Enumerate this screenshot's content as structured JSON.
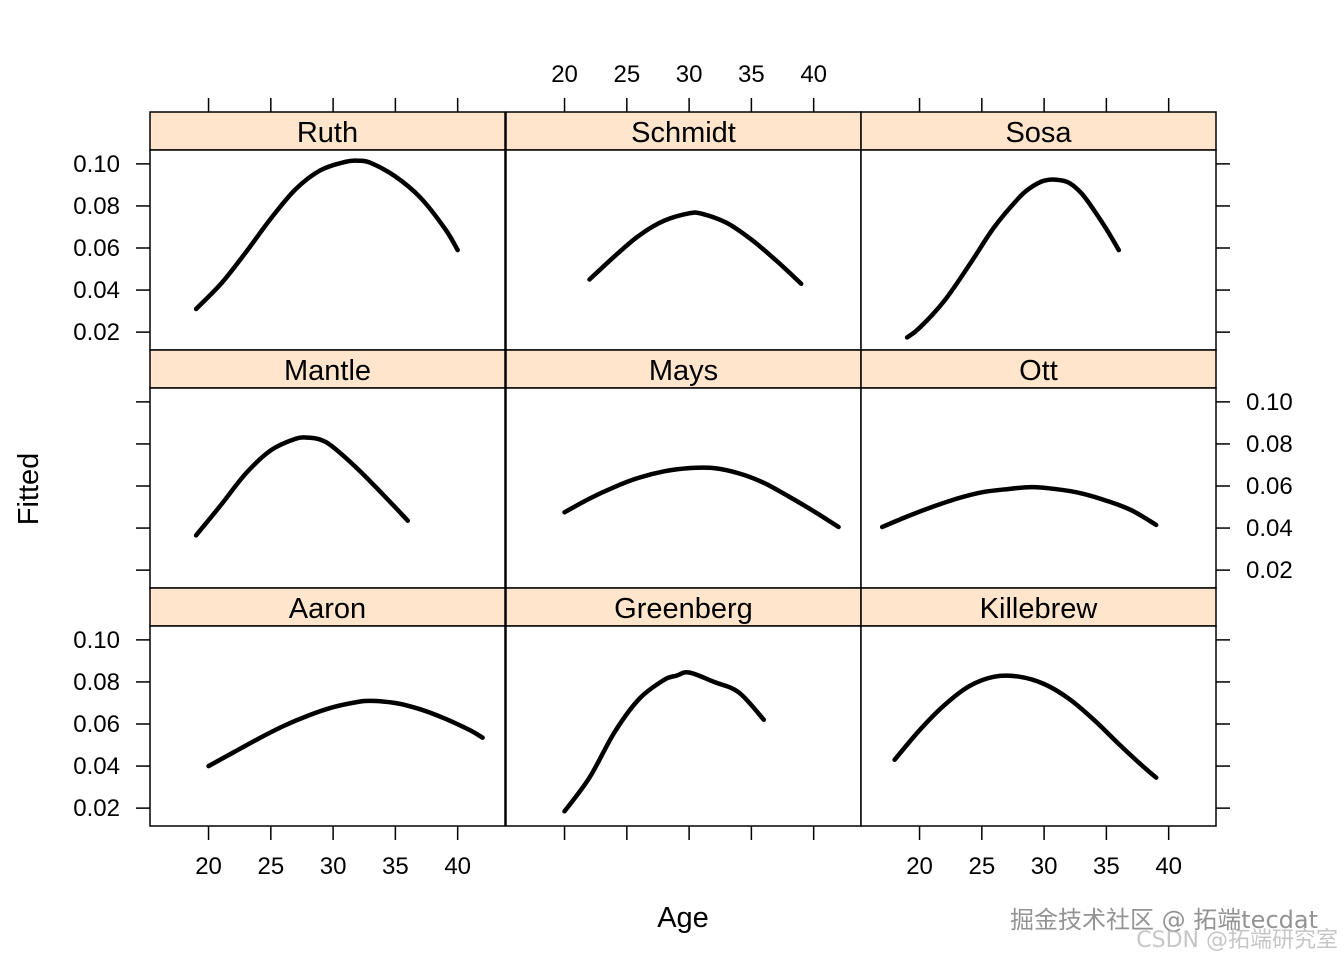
{
  "chart_data": {
    "type": "line",
    "layout": "lattice 3x3 trellis",
    "xlabel": "Age",
    "ylabel": "Fitted",
    "xlim": [
      15.3,
      43.8
    ],
    "ylim": [
      0.0115,
      0.1066
    ],
    "x_ticks": [
      20,
      25,
      30,
      35,
      40
    ],
    "y_ticks": [
      0.02,
      0.04,
      0.06,
      0.08,
      0.1
    ],
    "x_tick_labels": [
      "20",
      "25",
      "30",
      "35",
      "40"
    ],
    "y_tick_labels": [
      "0.02",
      "0.04",
      "0.06",
      "0.08",
      "0.10"
    ],
    "strip_color": "#ffe5cc",
    "line_color": "#000000",
    "panels": [
      {
        "name": "Ruth",
        "x": [
          19,
          21,
          23,
          25,
          27,
          29,
          31,
          32,
          33,
          35,
          37,
          39,
          40
        ],
        "y": [
          0.031,
          0.043,
          0.058,
          0.074,
          0.088,
          0.097,
          0.101,
          0.1015,
          0.1005,
          0.094,
          0.084,
          0.069,
          0.059
        ]
      },
      {
        "name": "Schmidt",
        "x": [
          22,
          24,
          26,
          28,
          30,
          31,
          33,
          35,
          37,
          39
        ],
        "y": [
          0.045,
          0.056,
          0.066,
          0.073,
          0.0765,
          0.0763,
          0.072,
          0.064,
          0.054,
          0.043
        ]
      },
      {
        "name": "Sosa",
        "x": [
          19,
          20,
          22,
          24,
          26,
          28,
          29,
          30,
          31,
          32,
          33,
          34,
          35,
          36
        ],
        "y": [
          0.0175,
          0.022,
          0.035,
          0.052,
          0.07,
          0.084,
          0.089,
          0.092,
          0.0925,
          0.091,
          0.086,
          0.078,
          0.069,
          0.059
        ]
      },
      {
        "name": "Mantle",
        "x": [
          19,
          21,
          23,
          25,
          27,
          28,
          29,
          30,
          32,
          34,
          36
        ],
        "y": [
          0.0365,
          0.051,
          0.066,
          0.077,
          0.0825,
          0.083,
          0.082,
          0.0785,
          0.068,
          0.056,
          0.0435
        ]
      },
      {
        "name": "Mays",
        "x": [
          20,
          22,
          24,
          26,
          28,
          30,
          32,
          34,
          36,
          38,
          40,
          42
        ],
        "y": [
          0.0475,
          0.054,
          0.0595,
          0.064,
          0.067,
          0.0685,
          0.0685,
          0.066,
          0.0615,
          0.055,
          0.048,
          0.0405
        ]
      },
      {
        "name": "Ott",
        "x": [
          17,
          19,
          21,
          23,
          25,
          27,
          29,
          31,
          33,
          35,
          37,
          39
        ],
        "y": [
          0.0405,
          0.0455,
          0.05,
          0.054,
          0.057,
          0.0585,
          0.0595,
          0.0585,
          0.0565,
          0.053,
          0.0485,
          0.0415
        ]
      },
      {
        "name": "Aaron",
        "x": [
          20,
          22,
          24,
          26,
          28,
          30,
          32,
          33,
          35,
          37,
          39,
          41,
          42
        ],
        "y": [
          0.04,
          0.0465,
          0.053,
          0.059,
          0.064,
          0.068,
          0.0705,
          0.071,
          0.07,
          0.067,
          0.0625,
          0.057,
          0.0535
        ]
      },
      {
        "name": "Greenberg",
        "x": [
          20,
          22,
          24,
          26,
          28,
          29,
          30,
          32,
          34,
          36
        ],
        "y": [
          0.0185,
          0.0345,
          0.056,
          0.072,
          0.081,
          0.083,
          0.0845,
          0.08,
          0.075,
          0.062
        ]
      },
      {
        "name": "Killebrew",
        "x": [
          18,
          20,
          22,
          24,
          26,
          28,
          30,
          32,
          34,
          36,
          38,
          39
        ],
        "y": [
          0.043,
          0.057,
          0.069,
          0.078,
          0.0825,
          0.0825,
          0.079,
          0.072,
          0.062,
          0.0505,
          0.0395,
          0.0345
        ]
      }
    ]
  },
  "watermark": {
    "line1": "掘金技术社区 @ 拓端tecdat",
    "line2": "CSDN @拓端研究室"
  }
}
